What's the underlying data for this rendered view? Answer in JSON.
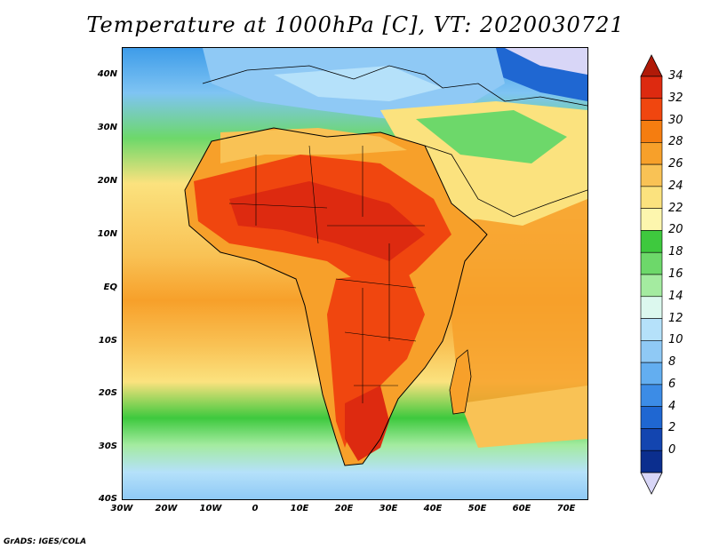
{
  "title": "Temperature at 1000hPa [C], VT: 2020030721",
  "footer": "GrADS: IGES/COLA",
  "map": {
    "lon_range": [
      -30,
      75
    ],
    "lat_range": [
      -40,
      45
    ],
    "lat_ticks": [
      {
        "label": "40N",
        "value": 40
      },
      {
        "label": "30N",
        "value": 30
      },
      {
        "label": "20N",
        "value": 20
      },
      {
        "label": "10N",
        "value": 10
      },
      {
        "label": "EQ",
        "value": 0
      },
      {
        "label": "10S",
        "value": -10
      },
      {
        "label": "20S",
        "value": -20
      },
      {
        "label": "30S",
        "value": -30
      },
      {
        "label": "40S",
        "value": -40
      }
    ],
    "lon_ticks": [
      {
        "label": "30W",
        "value": -30
      },
      {
        "label": "20W",
        "value": -20
      },
      {
        "label": "10W",
        "value": -10
      },
      {
        "label": "0",
        "value": 0
      },
      {
        "label": "10E",
        "value": 10
      },
      {
        "label": "20E",
        "value": 20
      },
      {
        "label": "30E",
        "value": 30
      },
      {
        "label": "40E",
        "value": 40
      },
      {
        "label": "50E",
        "value": 50
      },
      {
        "label": "60E",
        "value": 60
      },
      {
        "label": "70E",
        "value": 70
      }
    ]
  },
  "colorbar": {
    "levels": [
      "34",
      "32",
      "30",
      "28",
      "26",
      "24",
      "22",
      "20",
      "18",
      "16",
      "14",
      "12",
      "10",
      "8",
      "6",
      "4",
      "2",
      "0"
    ],
    "colors": [
      "#dd2a10",
      "#f0460f",
      "#f57d10",
      "#f7a02a",
      "#f9c255",
      "#fbe27e",
      "#fdf6ae",
      "#3ec93e",
      "#6dd86a",
      "#a4eba0",
      "#dcf8ee",
      "#b5e1fa",
      "#8fc9f5",
      "#63aef0",
      "#3c8ce6",
      "#1f67d2",
      "#1345b0",
      "#0b2e8e"
    ],
    "top_color": "#b01a08",
    "bottom_color": "#d8d6f7"
  }
}
